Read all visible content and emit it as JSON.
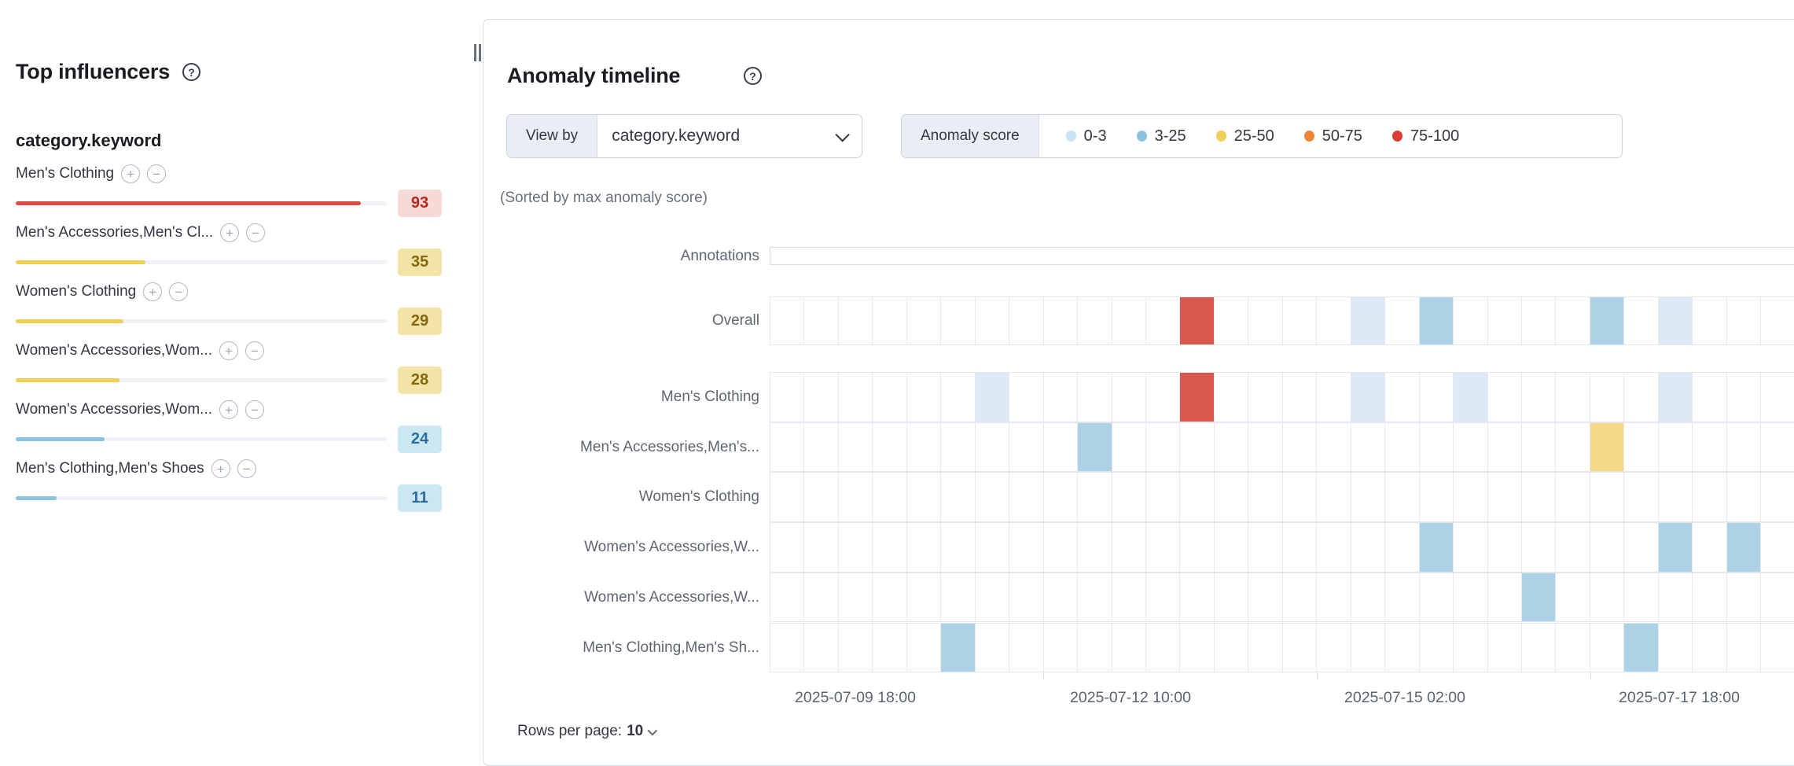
{
  "top_influencers": {
    "title": "Top influencers",
    "field": "category.keyword",
    "items": [
      {
        "label": "Men's Clothing",
        "score": 93,
        "severity": "critical"
      },
      {
        "label": "Men's Accessories,Men's Cl...",
        "score": 35,
        "severity": "warning"
      },
      {
        "label": "Women's Clothing",
        "score": 29,
        "severity": "warning"
      },
      {
        "label": "Women's Accessories,Wom...",
        "score": 28,
        "severity": "warning"
      },
      {
        "label": "Women's Accessories,Wom...",
        "score": 24,
        "severity": "minor"
      },
      {
        "label": "Men's Clothing,Men's Shoes",
        "score": 11,
        "severity": "minor"
      }
    ]
  },
  "timeline": {
    "title": "Anomaly timeline",
    "view_by_label": "View by",
    "view_by_value": "category.keyword",
    "legend_label": "Anomaly score",
    "sorted_note": "(Sorted by max anomaly score)",
    "rows_per_page_label": "Rows per page:",
    "rows_per_page_value": "10"
  },
  "chart_data": {
    "type": "heatmap",
    "title": "Anomaly timeline",
    "x_axis_labels": [
      "2025-07-09 18:00",
      "2025-07-12 10:00",
      "2025-07-15 02:00",
      "2025-07-17 18:00"
    ],
    "columns": 30,
    "hours_per_cell": 8,
    "legend": [
      {
        "range": "0-3",
        "level": "low"
      },
      {
        "range": "3-25",
        "level": "minor"
      },
      {
        "range": "25-50",
        "level": "warning"
      },
      {
        "range": "50-75",
        "level": "major"
      },
      {
        "range": "75-100",
        "level": "critical"
      }
    ],
    "lanes": [
      {
        "label": "Annotations",
        "kind": "annotations",
        "cells": []
      },
      {
        "label": "Overall",
        "kind": "overall",
        "cells": [
          {
            "col": 12,
            "level": "critical"
          },
          {
            "col": 17,
            "level": "low"
          },
          {
            "col": 19,
            "level": "minor"
          },
          {
            "col": 24,
            "level": "minor"
          },
          {
            "col": 26,
            "level": "low"
          }
        ]
      },
      {
        "label": "Men's Clothing",
        "kind": "viewby",
        "cells": [
          {
            "col": 6,
            "level": "low"
          },
          {
            "col": 12,
            "level": "critical"
          },
          {
            "col": 17,
            "level": "low"
          },
          {
            "col": 20,
            "level": "low"
          },
          {
            "col": 26,
            "level": "low"
          }
        ]
      },
      {
        "label": "Men's Accessories,Men's...",
        "kind": "viewby",
        "cells": [
          {
            "col": 9,
            "level": "minor"
          },
          {
            "col": 24,
            "level": "warning"
          }
        ]
      },
      {
        "label": "Women's Clothing",
        "kind": "viewby",
        "cells": []
      },
      {
        "label": "Women's Accessories,W...",
        "kind": "viewby",
        "cells": [
          {
            "col": 19,
            "level": "minor"
          },
          {
            "col": 26,
            "level": "minor"
          },
          {
            "col": 28,
            "level": "minor"
          }
        ]
      },
      {
        "label": "Women's Accessories,W...",
        "kind": "viewby",
        "cells": [
          {
            "col": 22,
            "level": "minor"
          }
        ]
      },
      {
        "label": "Men's Clothing,Men's Sh...",
        "kind": "viewby",
        "cells": [
          {
            "col": 5,
            "level": "minor"
          },
          {
            "col": 25,
            "level": "minor"
          }
        ]
      }
    ],
    "cell_colors": {
      "low": "#DDEAF5",
      "minor": "#ADD2E4",
      "warning": "#F5D988",
      "major": "#EE8536",
      "critical": "#D7594E"
    },
    "legend_dot_colors": {
      "low": "#C9E3F2",
      "minor": "#8BC2E0",
      "warning": "#F1CF5D",
      "major": "#EE8536",
      "critical": "#DD3E33"
    },
    "influencer_colors": {
      "bar": {
        "critical": "#DB4D42",
        "warning": "#EFCE55",
        "minor": "#8AC3DD"
      },
      "badge_bg": {
        "critical": "#F7DAD6",
        "warning": "#F2E3A6",
        "minor": "#CBE7F2"
      },
      "badge_text": {
        "critical": "#B2271E",
        "warning": "#83670B",
        "minor": "#2A6C9E"
      }
    }
  }
}
